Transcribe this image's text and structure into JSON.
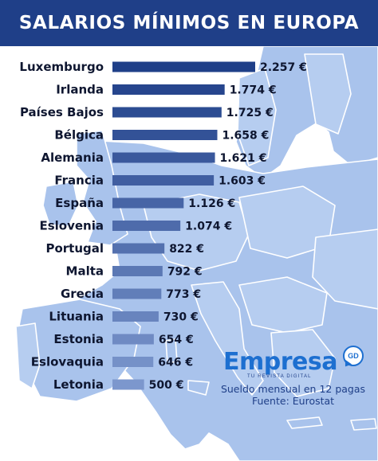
{
  "header": {
    "title": "SALARIOS MÍNIMOS EN EUROPA"
  },
  "brand": {
    "name": "Empresa",
    "badge": "GD",
    "tagline": "TU REVISTA DIGITAL"
  },
  "footer": {
    "note": "Sueldo mensual en 12 pagas",
    "source": "Fuente: Eurostat"
  },
  "colors": {
    "header_bg": "#1f3f88",
    "map_land": "#a9c3ec",
    "map_border": "#ffffff",
    "bar_top": "#1f3f88",
    "bar_bottom": "#7c97cd"
  },
  "chart_data": {
    "type": "bar",
    "orientation": "horizontal",
    "title": "SALARIOS MÍNIMOS EN EUROPA",
    "categories": [
      "Luxemburgo",
      "Irlanda",
      "Países Bajos",
      "Bélgica",
      "Alemania",
      "Francia",
      "España",
      "Eslovenia",
      "Portugal",
      "Malta",
      "Grecia",
      "Lituania",
      "Estonia",
      "Eslovaquia",
      "Letonia"
    ],
    "values": [
      2257,
      1774,
      1725,
      1658,
      1621,
      1603,
      1126,
      1074,
      822,
      792,
      773,
      730,
      654,
      646,
      500
    ],
    "value_labels": [
      "2.257 €",
      "1.774 €",
      "1.725 €",
      "1.658 €",
      "1.621 €",
      "1.603 €",
      "1.126 €",
      "1.074 €",
      "822 €",
      "792 €",
      "773 €",
      "730 €",
      "654 €",
      "646 €",
      "500 €"
    ],
    "unit": "€",
    "xlabel": "",
    "ylabel": ""
  }
}
